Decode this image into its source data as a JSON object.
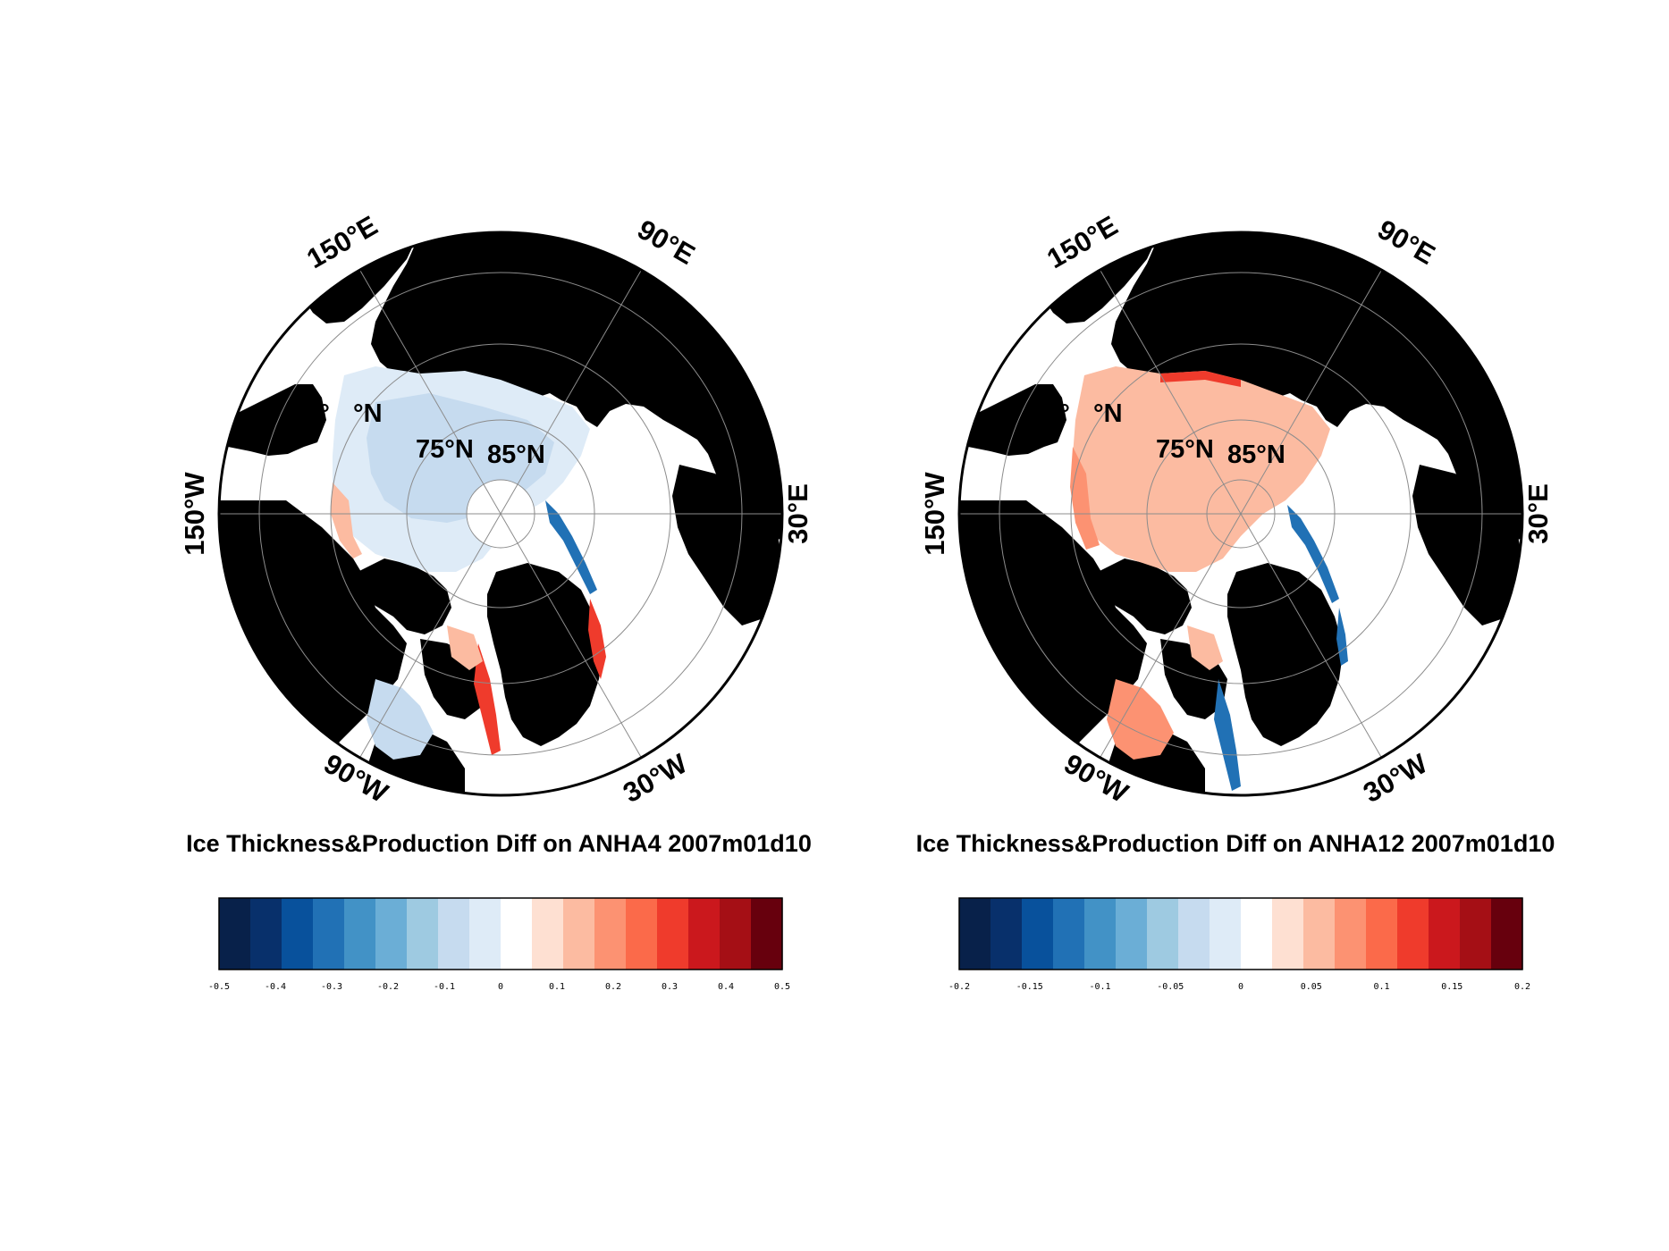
{
  "colors": {
    "land": "#000000",
    "open_ocean": "#ffffff",
    "graticule": "#8c8c8c",
    "frame": "#000000"
  },
  "palette": [
    "#08214a",
    "#08306b",
    "#08519c",
    "#2171b5",
    "#4292c6",
    "#6baed6",
    "#9ecae1",
    "#c6dbef",
    "#deebf7",
    "#ffffff",
    "#fee0d2",
    "#fcbba1",
    "#fc9272",
    "#fb6a4a",
    "#ef3b2c",
    "#cb181d",
    "#a50f15",
    "#67000d"
  ],
  "panels": [
    {
      "id": "anha4",
      "title": "Ice Thickness&Production Diff on ANHA4 2007m01d10",
      "lon_labels": [
        "150°E",
        "90°E",
        "150°W",
        "30°E",
        "90°W",
        "30°W"
      ],
      "lat_labels": [
        "60°",
        "°N",
        "75°N",
        "85°N"
      ],
      "colorbar": {
        "min": -0.5,
        "max": 0.5,
        "tick_labels": [
          "-0.5",
          "-0.4",
          "-0.3",
          "-0.2",
          "-0.1",
          "0",
          "0.1",
          "0.2",
          "0.3",
          "0.4",
          "0.5"
        ]
      },
      "field": {
        "dominant": "light-blue",
        "description_colors": [
          "#c6dbef",
          "#deebf7",
          "#fcbba1",
          "#ef3b2c",
          "#2171b5"
        ]
      }
    },
    {
      "id": "anha12",
      "title": "Ice Thickness&Production Diff on ANHA12 2007m01d10",
      "lon_labels": [
        "150°E",
        "90°E",
        "150°W",
        "30°E",
        "90°W",
        "30°W"
      ],
      "lat_labels": [
        "60°",
        "°N",
        "75°N",
        "85°N"
      ],
      "colorbar": {
        "min": -0.2,
        "max": 0.2,
        "tick_labels": [
          "-0.2",
          "-0.15",
          "-0.1",
          "-0.05",
          "0",
          "0.05",
          "0.1",
          "0.15",
          "0.2"
        ]
      },
      "field": {
        "dominant": "light-red",
        "description_colors": [
          "#fcbba1",
          "#fc9272",
          "#ef3b2c",
          "#2171b5"
        ]
      }
    }
  ]
}
